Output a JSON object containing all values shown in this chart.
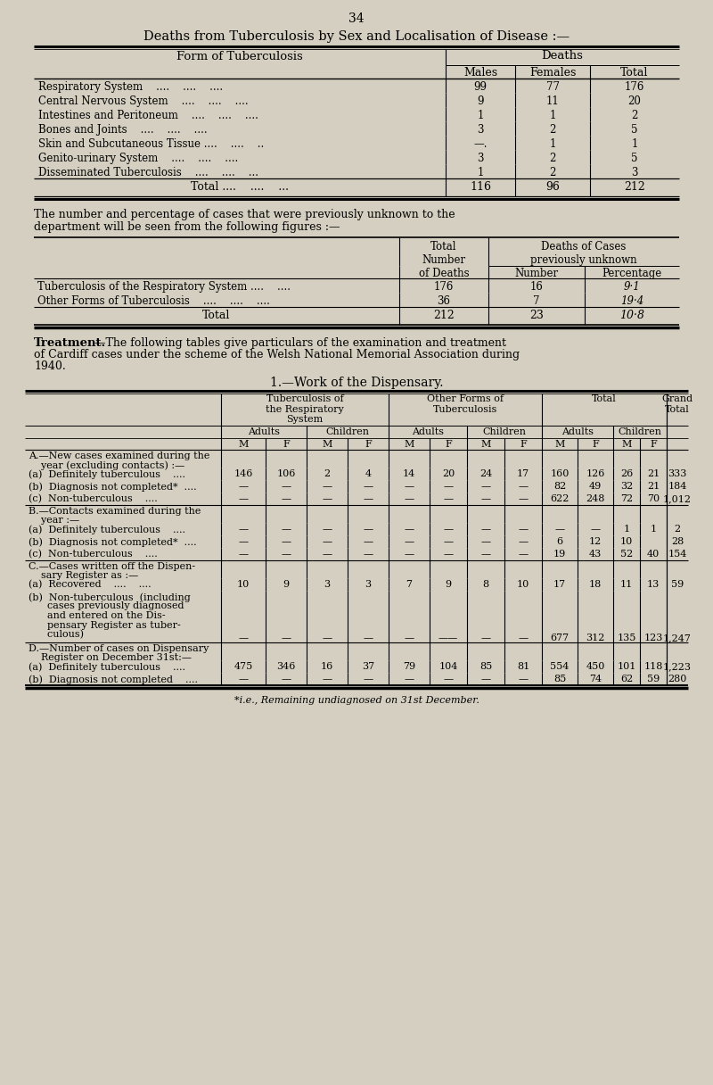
{
  "bg_color": "#d4cfc0",
  "page_number": "34",
  "title1": "Deaths from Tuberculosis by Sex and Localisation of Disease :—",
  "table1_rows": [
    [
      "Respiratory System    ....    ....    ....",
      "99",
      "77",
      "176"
    ],
    [
      "Central Nervous System    ....    ....    ....",
      "9",
      "11",
      "20"
    ],
    [
      "Intestines and Peritoneum    ....    ....    ....",
      "1",
      "1",
      "2"
    ],
    [
      "Bones and Joints    ....    ....    ....",
      "3",
      "2",
      "5"
    ],
    [
      "Skin and Subcutaneous Tissue ....    ....    ..",
      "—.",
      "1",
      "1"
    ],
    [
      "Genito-urinary System    ....    ....    ....",
      "3",
      "2",
      "5"
    ],
    [
      "Disseminated Tuberculosis    ....    ....    ...",
      "1",
      "2",
      "3"
    ]
  ],
  "table1_total": [
    "Total ....    ....    ...",
    "116",
    "96",
    "212"
  ],
  "table2_rows": [
    [
      "Tuberculosis of the Respiratory System ....    ....",
      "176",
      "16",
      "9·1"
    ],
    [
      "Other Forms of Tuberculosis    ....    ....    ....",
      "36",
      "7",
      "19·4"
    ]
  ],
  "table2_total": [
    "Total",
    "212",
    "23",
    "10·8"
  ],
  "treatment_text1": "—The following tables give particulars of the examination and treatment",
  "treatment_text2": "of Cardiff cases under the scheme of the Welsh National Memorial Association during",
  "treatment_text3": "1940.",
  "dispensary_title": "1.—Work of the Dispensary.",
  "table3_mf": [
    "M",
    "F",
    "M",
    "F",
    "M",
    "F",
    "M",
    "F",
    "M",
    "F",
    "M",
    "F"
  ],
  "section_A_rows": [
    [
      "(a)  Definitely tuberculous    ....",
      "146",
      "106",
      "2",
      "4",
      "14",
      "20",
      "24",
      "17",
      "160",
      "126",
      "26",
      "21",
      "333"
    ],
    [
      "(b)  Diagnosis not completed*  ....",
      "—",
      "—",
      "—",
      "—",
      "—",
      "—",
      "—",
      "—",
      "82",
      "49",
      "32",
      "21",
      "184"
    ],
    [
      "(c)  Non-tuberculous    ....",
      "—",
      "—",
      "—",
      "—",
      "—",
      "—",
      "—",
      "—",
      "622",
      "248",
      "72",
      "70",
      "1,012"
    ]
  ],
  "section_B_rows": [
    [
      "(a)  Definitely tuberculous    ....",
      "—",
      "—",
      "—",
      "—",
      "—",
      "—",
      "—",
      "—",
      "—",
      "—",
      "1",
      "1",
      "2"
    ],
    [
      "(b)  Diagnosis not completed*  ....",
      "—",
      "—",
      "—",
      "—",
      "—",
      "—",
      "—",
      "—",
      "6",
      "12",
      "10",
      "",
      "28"
    ],
    [
      "(c)  Non-tuberculous    ....",
      "—",
      "—",
      "—",
      "—",
      "—",
      "—",
      "—",
      "—",
      "19",
      "43",
      "52",
      "40",
      "154"
    ]
  ],
  "section_C_row_a": [
    "(a)  Recovered    ....    ....",
    "10",
    "9",
    "3",
    "3",
    "7",
    "9",
    "8",
    "10",
    "17",
    "18",
    "11",
    "13",
    "59"
  ],
  "section_C_row_b_vals": [
    "—",
    "—",
    "—",
    "—",
    "—",
    "——",
    "—",
    "—",
    "677",
    "312",
    "135",
    "123",
    "1,247"
  ],
  "section_D_rows": [
    [
      "(a)  Definitely tuberculous    ....",
      "475",
      "346",
      "16",
      "37",
      "79",
      "104",
      "85",
      "81",
      "554",
      "450",
      "101",
      "118",
      "1,223"
    ],
    [
      "(b)  Diagnosis not completed    ....",
      "—",
      "—",
      "—",
      "—",
      "—",
      "—",
      "—",
      "—",
      "85",
      "74",
      "62",
      "59",
      "280"
    ]
  ],
  "footnote": "*i.e., Remaining undiagnosed on 31st December."
}
